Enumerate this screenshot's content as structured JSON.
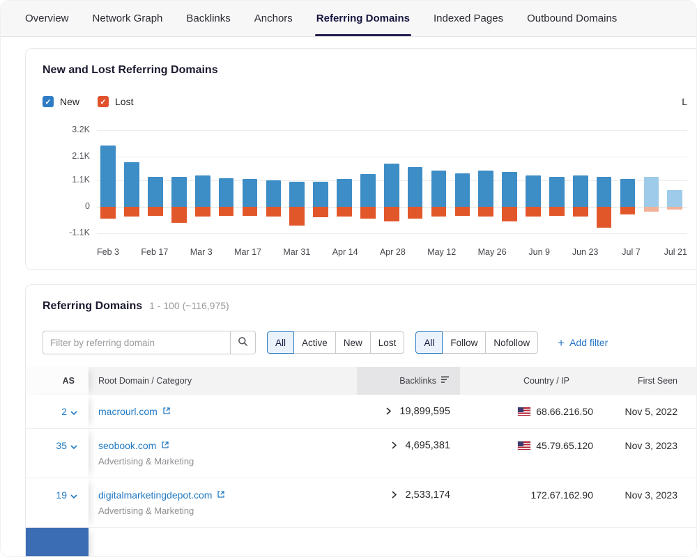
{
  "tabs": [
    {
      "label": "Overview",
      "active": false
    },
    {
      "label": "Network Graph",
      "active": false
    },
    {
      "label": "Backlinks",
      "active": false
    },
    {
      "label": "Anchors",
      "active": false
    },
    {
      "label": "Referring Domains",
      "active": true
    },
    {
      "label": "Indexed Pages",
      "active": false
    },
    {
      "label": "Outbound Domains",
      "active": false
    }
  ],
  "chart_card": {
    "title": "New and Lost Referring Domains",
    "legend": [
      {
        "label": "New",
        "color": "#2e7cc3",
        "checked": true
      },
      {
        "label": "Lost",
        "color": "#e0512c",
        "checked": true
      }
    ],
    "truncated_right_text": "L"
  },
  "chart_data": {
    "type": "bar",
    "stacked": true,
    "title": "New and Lost Referring Domains",
    "series_names": [
      "New",
      "Lost"
    ],
    "grid": true,
    "legend_position": "top-left",
    "x_tick_labels": [
      "Feb 3",
      "Feb 17",
      "Mar 3",
      "Mar 17",
      "Mar 31",
      "Apr 14",
      "Apr 28",
      "May 12",
      "May 26",
      "Jun 9",
      "Jun 23",
      "Jul 7",
      "Jul 21"
    ],
    "y_ticks": [
      {
        "label": "3.2K",
        "value": 3200
      },
      {
        "label": "2.1K",
        "value": 2100
      },
      {
        "label": "1.1K",
        "value": 1100
      },
      {
        "label": "0",
        "value": 0
      },
      {
        "label": "-1.1K",
        "value": -1100
      }
    ],
    "y_axis": {
      "max": 3400,
      "min": -1400
    },
    "bars": [
      {
        "new": 2550,
        "lost": 500
      },
      {
        "new": 1850,
        "lost": 420
      },
      {
        "new": 1250,
        "lost": 380
      },
      {
        "new": 1250,
        "lost": 680
      },
      {
        "new": 1300,
        "lost": 400
      },
      {
        "new": 1200,
        "lost": 380
      },
      {
        "new": 1150,
        "lost": 380
      },
      {
        "new": 1100,
        "lost": 420
      },
      {
        "new": 1050,
        "lost": 780
      },
      {
        "new": 1050,
        "lost": 450
      },
      {
        "new": 1150,
        "lost": 400
      },
      {
        "new": 1350,
        "lost": 500
      },
      {
        "new": 1800,
        "lost": 620
      },
      {
        "new": 1650,
        "lost": 500
      },
      {
        "new": 1500,
        "lost": 420
      },
      {
        "new": 1400,
        "lost": 380
      },
      {
        "new": 1500,
        "lost": 420
      },
      {
        "new": 1450,
        "lost": 600
      },
      {
        "new": 1300,
        "lost": 420
      },
      {
        "new": 1250,
        "lost": 380
      },
      {
        "new": 1300,
        "lost": 420
      },
      {
        "new": 1250,
        "lost": 880
      },
      {
        "new": 1150,
        "lost": 320
      },
      {
        "new": 1250,
        "lost": 200
      },
      {
        "new": 700,
        "lost": 120
      }
    ],
    "light_from_index": 23,
    "colors": {
      "new": "#3d8dc6",
      "lost": "#e2572a",
      "new_light": "#9ecbe9",
      "lost_light": "#f2b29a"
    }
  },
  "table_card": {
    "title": "Referring Domains",
    "count_text": "1 - 100 (~116,975)",
    "filter": {
      "placeholder": "Filter by referring domain",
      "status_options": [
        "All",
        "Active",
        "New",
        "Lost"
      ],
      "status_selected": "All",
      "follow_options": [
        "All",
        "Follow",
        "Nofollow"
      ],
      "follow_selected": "All",
      "add_filter_plus": "+",
      "add_filter_label": "Add filter"
    },
    "columns": {
      "as": "AS",
      "domain": "Root Domain / Category",
      "backlinks": "Backlinks",
      "country": "Country / IP",
      "first_seen": "First Seen"
    },
    "rows": [
      {
        "as": "2",
        "domain": "macrourl.com",
        "category": "",
        "backlinks": "19,899,595",
        "flag": "us",
        "ip": "68.66.216.50",
        "first_seen": "Nov 5, 2022"
      },
      {
        "as": "35",
        "domain": "seobook.com",
        "category": "Advertising & Marketing",
        "backlinks": "4,695,381",
        "flag": "us",
        "ip": "45.79.65.120",
        "first_seen": "Nov 3, 2023"
      },
      {
        "as": "19",
        "domain": "digitalmarketingdepot.com",
        "category": "Advertising & Marketing",
        "backlinks": "2,533,174",
        "flag": "",
        "ip": "172.67.162.90",
        "first_seen": "Nov 3, 2023"
      }
    ]
  }
}
